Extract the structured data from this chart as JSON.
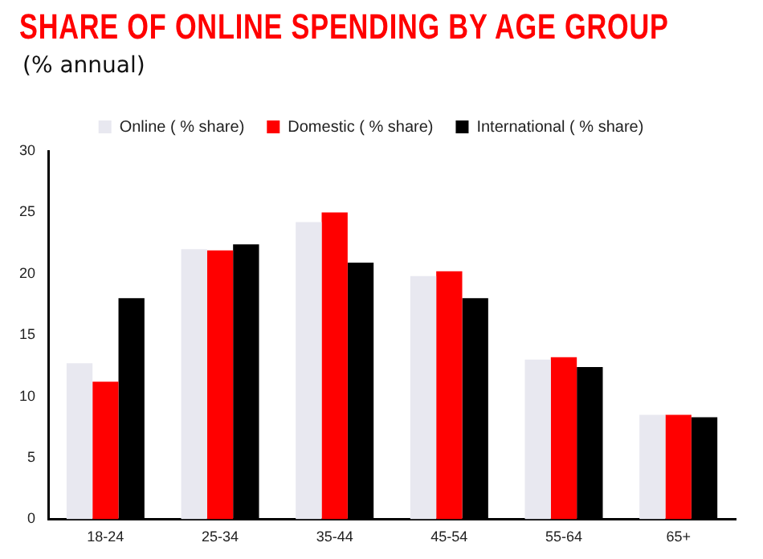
{
  "chart_data": {
    "type": "bar",
    "title": "SHARE OF ONLINE SPENDING BY AGE GROUP",
    "subtitle": "(% annual)",
    "categories": [
      "18-24",
      "25-34",
      "35-44",
      "45-54",
      "55-64",
      "65+"
    ],
    "series": [
      {
        "name": "Online ( % share)",
        "color": "#e8e8f0",
        "values": [
          12.7,
          22.0,
          24.2,
          19.8,
          13.0,
          8.5
        ]
      },
      {
        "name": "Domestic ( % share)",
        "color": "#ff0000",
        "values": [
          11.2,
          21.9,
          25.0,
          20.2,
          13.2,
          8.5
        ]
      },
      {
        "name": "International ( % share)",
        "color": "#000000",
        "values": [
          18.0,
          22.4,
          20.9,
          18.0,
          12.4,
          8.3
        ]
      }
    ],
    "ylim": [
      0,
      30
    ],
    "yticks": [
      0,
      5,
      10,
      15,
      20,
      25,
      30
    ],
    "grid": false,
    "legend": "top"
  }
}
